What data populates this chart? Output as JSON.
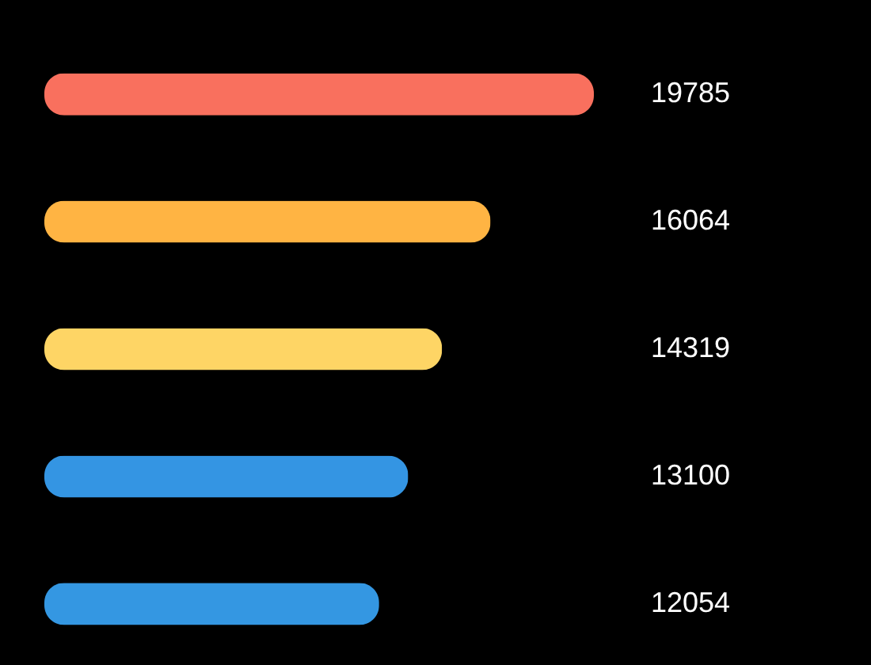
{
  "chart_data": {
    "type": "bar",
    "orientation": "horizontal",
    "categories": [
      null,
      null,
      null,
      null,
      null
    ],
    "values": [
      19785,
      16064,
      14319,
      13100,
      12054
    ],
    "colors": [
      "#f9705e",
      "#ffb443",
      "#fed565",
      "#3495e3",
      "#3497e2"
    ],
    "data_labels": true,
    "tick_labels": false
  }
}
